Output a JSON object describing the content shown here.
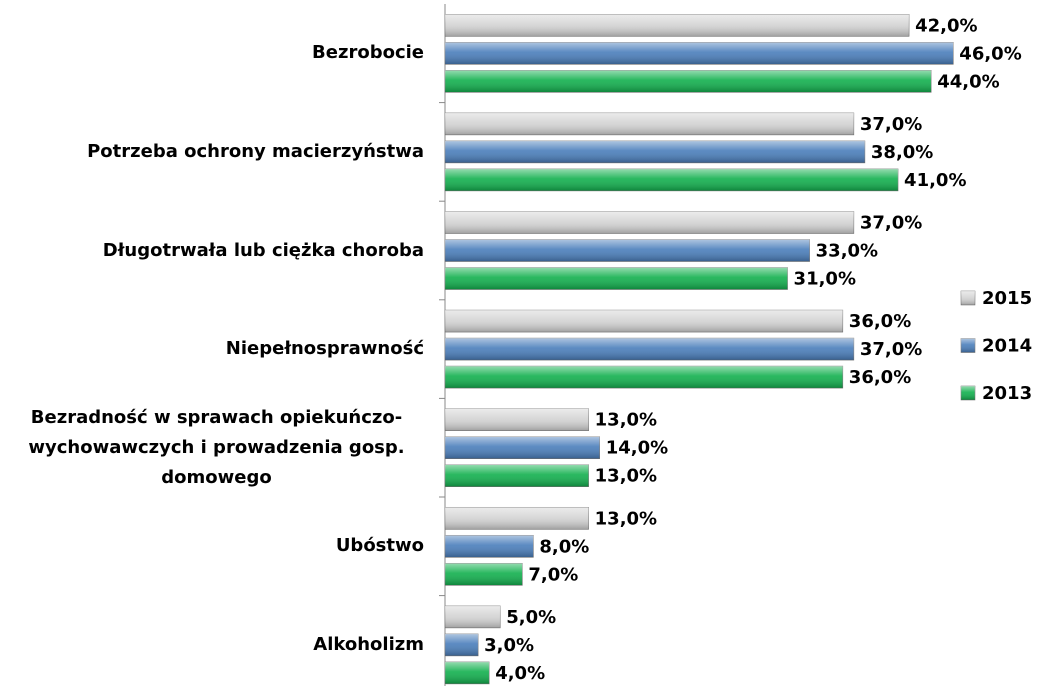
{
  "chart_data": {
    "type": "bar",
    "orientation": "horizontal",
    "categories": [
      "Bezrobocie",
      "Potrzeba ochrony macierzyństwa",
      "Długotrwała lub ciężka choroba",
      "Niepełnosprawność",
      "Bezradność w sprawach opiekuńczo-wychowawczych i prowadzenia gosp. domowego",
      "Ubóstwo",
      "Alkoholizm"
    ],
    "series": [
      {
        "name": "2015",
        "color": "#d4d4d4",
        "values": [
          42,
          37,
          37,
          36,
          13,
          13,
          5
        ],
        "value_labels": [
          "42,0%",
          "37,0%",
          "37,0%",
          "36,0%",
          "13,0%",
          "13,0%",
          "5,0%"
        ]
      },
      {
        "name": "2014",
        "color": "#4a7ebb",
        "values": [
          46,
          38,
          33,
          37,
          14,
          8,
          3
        ],
        "value_labels": [
          "46,0%",
          "38,0%",
          "33,0%",
          "37,0%",
          "14,0%",
          "8,0%",
          "3,0%"
        ]
      },
      {
        "name": "2013",
        "color": "#12b04e",
        "values": [
          44,
          41,
          31,
          36,
          13,
          7,
          4
        ],
        "value_labels": [
          "44,0%",
          "41,0%",
          "31,0%",
          "36,0%",
          "13,0%",
          "7,0%",
          "4,0%"
        ]
      }
    ],
    "legend": "right"
  }
}
